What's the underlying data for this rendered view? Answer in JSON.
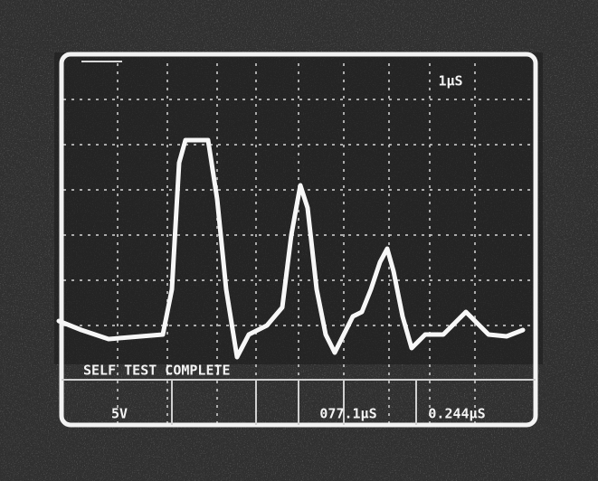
{
  "screen": {
    "top_label": "1μS",
    "status": "SELF TEST COMPLETE",
    "readouts": [
      "5V",
      "077.1μS",
      "0.244μS"
    ]
  }
}
